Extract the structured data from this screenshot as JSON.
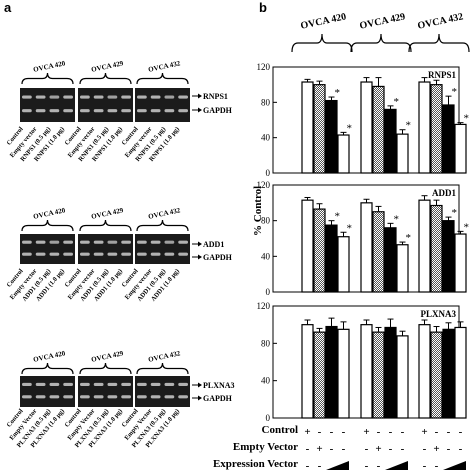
{
  "panel_a": {
    "label": "a",
    "blots": [
      {
        "cell_lines": [
          "OVCA 420",
          "OVCA 429",
          "OVCA 432"
        ],
        "bands": [
          "RNPS1",
          "GAPDH"
        ],
        "lanes": [
          "Control",
          "Empty vector",
          "RNPS1 (0.5 μg)",
          "RNPS1 (1.0 μg)"
        ]
      },
      {
        "cell_lines": [
          "OVCA 420",
          "OVCA 429",
          "OVCA 432"
        ],
        "bands": [
          "ADD1",
          "GAPDH"
        ],
        "lanes": [
          "Control",
          "Empty vector",
          "ADD1 (0.5 μg)",
          "ADD1 (1.0 μg)"
        ]
      },
      {
        "cell_lines": [
          "OVCA 420",
          "OVCA 429",
          "OVCA 432"
        ],
        "bands": [
          "PLXNA3",
          "GAPDH"
        ],
        "lanes": [
          "Control",
          "Empty Vector",
          "PLXNA3 (0.5 μg)",
          "PLXNA3 (1.0 μg)"
        ]
      }
    ]
  },
  "panel_b": {
    "label": "b",
    "cell_lines": [
      "OVCA 420",
      "OVCA 429",
      "OVCA 432"
    ],
    "ylabel": "% Control",
    "conditions": [
      "Control",
      "Empty Vector",
      "Expression Vector"
    ],
    "condition_rows": {
      "control": [
        "+",
        "-",
        "-",
        "-",
        "+",
        "-",
        "-",
        "-",
        "+",
        "-",
        "-",
        "-"
      ],
      "empty": [
        "-",
        "+",
        "-",
        "-",
        "-",
        "+",
        "-",
        "-",
        "-",
        "+",
        "-",
        "-"
      ],
      "expression": [
        "-",
        "-",
        "ramp",
        "ramp",
        "-",
        "-",
        "ramp",
        "ramp",
        "-",
        "-",
        "ramp",
        "ramp"
      ]
    }
  },
  "chart_data": [
    {
      "type": "bar",
      "title": "RNPS1",
      "ylabel": "% Control",
      "ylim": [
        0,
        120
      ],
      "yticks": [
        0,
        40,
        80,
        120
      ],
      "groups": [
        "OVCA 420",
        "OVCA 429",
        "OVCA 432"
      ],
      "series": [
        {
          "name": "Control",
          "values": [
            103,
            103,
            103
          ]
        },
        {
          "name": "Empty Vector",
          "values": [
            100,
            98,
            100
          ]
        },
        {
          "name": "Expression Vector (0.5 μg)",
          "values": [
            82,
            72,
            77
          ]
        },
        {
          "name": "Expression Vector (1.0 μg)",
          "values": [
            43,
            44,
            55
          ]
        }
      ],
      "errors": [
        [
          3,
          5,
          5
        ],
        [
          4,
          10,
          5
        ],
        [
          4,
          4,
          10
        ],
        [
          3,
          5,
          2
        ]
      ],
      "significant": [
        [
          false,
          false,
          false
        ],
        [
          false,
          false,
          false
        ],
        [
          true,
          true,
          true
        ],
        [
          true,
          true,
          true
        ]
      ],
      "annotation": "*"
    },
    {
      "type": "bar",
      "title": "ADD1",
      "ylabel": "% Control",
      "ylim": [
        0,
        120
      ],
      "yticks": [
        0,
        40,
        80,
        120
      ],
      "groups": [
        "OVCA 420",
        "OVCA 429",
        "OVCA 432"
      ],
      "series": [
        {
          "name": "Control",
          "values": [
            103,
            100,
            103
          ]
        },
        {
          "name": "Empty Vector",
          "values": [
            93,
            90,
            97
          ]
        },
        {
          "name": "Expression Vector (0.5 μg)",
          "values": [
            75,
            72,
            80
          ]
        },
        {
          "name": "Expression Vector (1.0 μg)",
          "values": [
            62,
            53,
            65
          ]
        }
      ],
      "errors": [
        [
          3,
          4,
          5
        ],
        [
          6,
          6,
          6
        ],
        [
          5,
          5,
          4
        ],
        [
          5,
          3,
          3
        ]
      ],
      "significant": [
        [
          false,
          false,
          false
        ],
        [
          false,
          false,
          false
        ],
        [
          true,
          true,
          true
        ],
        [
          true,
          true,
          true
        ]
      ],
      "annotation": "*"
    },
    {
      "type": "bar",
      "title": "PLXNA3",
      "ylabel": "% Control",
      "ylim": [
        0,
        120
      ],
      "yticks": [
        0,
        40,
        80,
        120
      ],
      "groups": [
        "OVCA 420",
        "OVCA 429",
        "OVCA 432"
      ],
      "series": [
        {
          "name": "Control",
          "values": [
            100,
            100,
            100
          ]
        },
        {
          "name": "Empty Vector",
          "values": [
            92,
            92,
            92
          ]
        },
        {
          "name": "Expression Vector (0.5 μg)",
          "values": [
            98,
            97,
            95
          ]
        },
        {
          "name": "Expression Vector (1.0 μg)",
          "values": [
            95,
            88,
            97
          ]
        }
      ],
      "errors": [
        [
          5,
          5,
          5
        ],
        [
          4,
          5,
          6
        ],
        [
          9,
          9,
          7
        ],
        [
          8,
          5,
          6
        ]
      ],
      "significant": [
        [
          false,
          false,
          false
        ],
        [
          false,
          false,
          false
        ],
        [
          false,
          false,
          false
        ],
        [
          false,
          false,
          false
        ]
      ],
      "annotation": "*"
    }
  ]
}
